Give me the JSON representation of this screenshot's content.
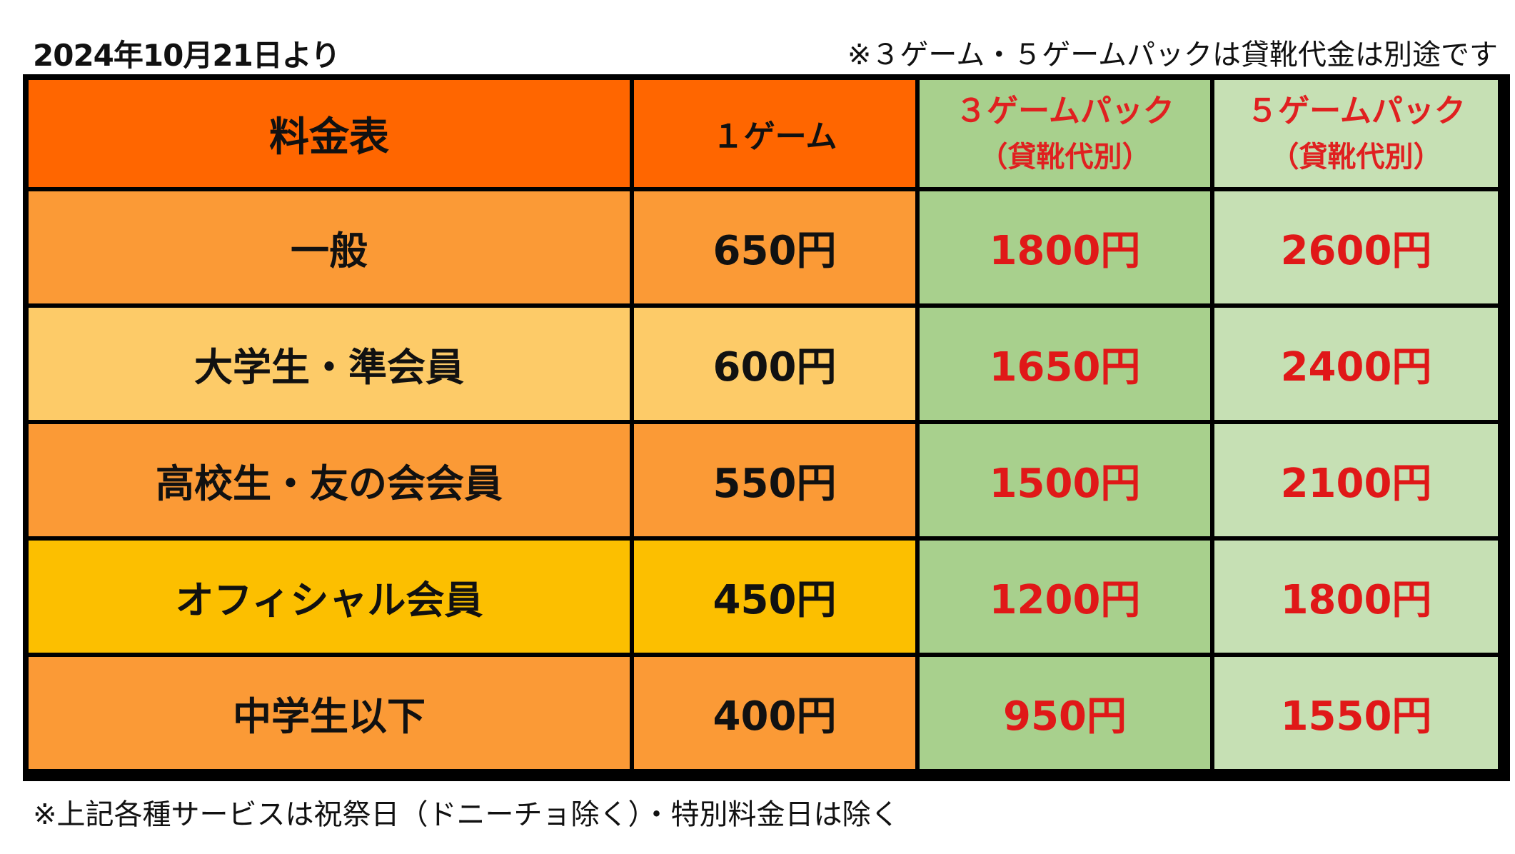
{
  "notes": {
    "effective_date": "2024年10月21日より",
    "pack_note": "※３ゲーム・５ゲームパックは貸靴代金は別途です",
    "footer": "※上記各種サービスは祝祭日（ドニーチョ除く）・特別料金日は除く"
  },
  "table": {
    "header": {
      "category": "料金表",
      "one_game": "１ゲーム",
      "pack3_title": "３ゲームパック",
      "pack3_sub": "（貸靴代別）",
      "pack5_title": "５ゲームパック",
      "pack5_sub": "（貸靴代別）"
    },
    "rows": [
      {
        "category": "一般",
        "one_game": "650円",
        "pack3": "1800円",
        "pack5": "2600円"
      },
      {
        "category": "大学生・準会員",
        "one_game": "600円",
        "pack3": "1650円",
        "pack5": "2400円"
      },
      {
        "category": "高校生・友の会会員",
        "one_game": "550円",
        "pack3": "1500円",
        "pack5": "2100円"
      },
      {
        "category": "オフィシャル会員",
        "one_game": "450円",
        "pack3": "1200円",
        "pack5": "1800円"
      },
      {
        "category": "中学生以下",
        "one_game": "400円",
        "pack3": "950円",
        "pack5": "1550円"
      }
    ]
  },
  "colors": {
    "header_orange": "#ff6600",
    "row_orange": "#fb9a36",
    "row_light_orange": "#fdcb68",
    "row_gold": "#fcbf00",
    "green_dark": "#a8d08d",
    "green_light": "#c6e0b4",
    "price_red": "#e01818"
  }
}
